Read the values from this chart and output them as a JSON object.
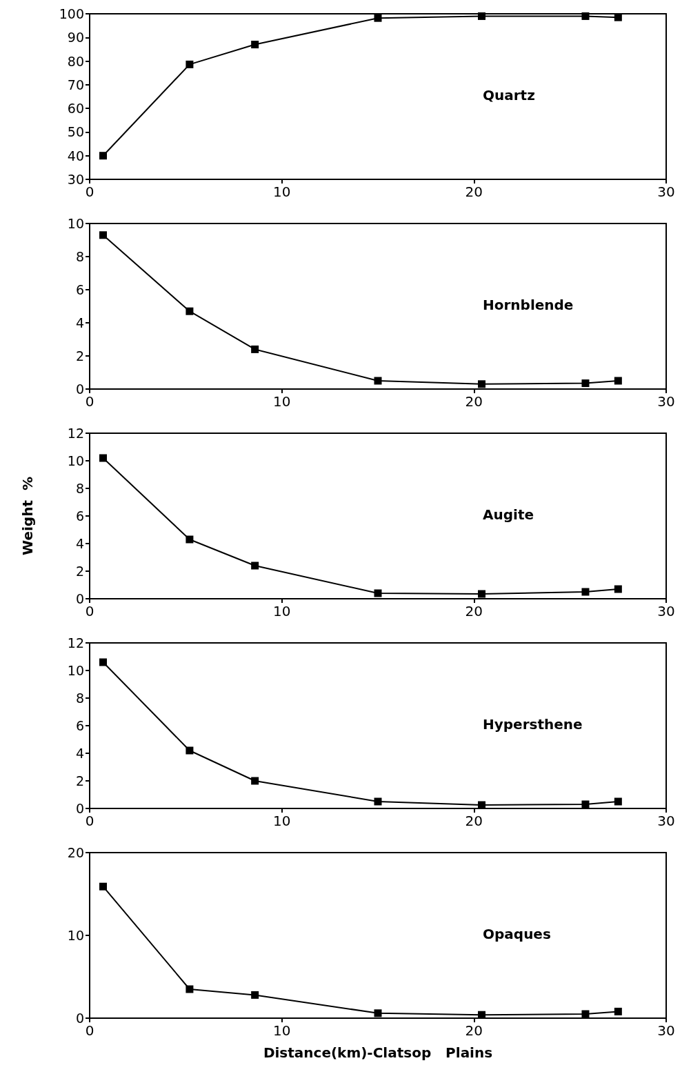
{
  "chart_data": [
    {
      "type": "line",
      "x": [
        0.7,
        5.2,
        8.6,
        15,
        20.4,
        25.8,
        27.5
      ],
      "values": [
        40,
        78.6,
        87,
        98.2,
        99,
        99,
        98.5
      ],
      "color": "#000000",
      "marker": "square",
      "xlim": [
        0,
        30
      ],
      "xticks": [
        0,
        10,
        20,
        30
      ],
      "ylim": [
        30,
        100
      ],
      "yticks": [
        30,
        40,
        50,
        60,
        70,
        80,
        90,
        100
      ],
      "grid": false,
      "annotations": [
        "Quartz"
      ]
    },
    {
      "type": "line",
      "x": [
        0.7,
        5.2,
        8.6,
        15,
        20.4,
        25.8,
        27.5
      ],
      "values": [
        9.3,
        4.7,
        2.4,
        0.5,
        0.3,
        0.35,
        0.5
      ],
      "color": "#000000",
      "marker": "square",
      "xlim": [
        0,
        30
      ],
      "xticks": [
        0,
        10,
        20,
        30
      ],
      "ylim": [
        0,
        10
      ],
      "yticks": [
        0,
        2,
        4,
        6,
        8,
        10
      ],
      "grid": false,
      "annotations": [
        "Hornblende"
      ]
    },
    {
      "type": "line",
      "x": [
        0.7,
        5.2,
        8.6,
        15,
        20.4,
        25.8,
        27.5
      ],
      "values": [
        10.2,
        4.3,
        2.4,
        0.4,
        0.35,
        0.5,
        0.7
      ],
      "color": "#000000",
      "marker": "square",
      "xlim": [
        0,
        30
      ],
      "xticks": [
        0,
        10,
        20,
        30
      ],
      "ylim": [
        0,
        12
      ],
      "yticks": [
        0,
        2,
        4,
        6,
        8,
        10,
        12
      ],
      "grid": false,
      "ylabel": "Weight  %",
      "annotations": [
        "Augite"
      ]
    },
    {
      "type": "line",
      "x": [
        0.7,
        5.2,
        8.6,
        15,
        20.4,
        25.8,
        27.5
      ],
      "values": [
        10.6,
        4.2,
        2.0,
        0.5,
        0.25,
        0.3,
        0.5
      ],
      "color": "#000000",
      "marker": "square",
      "xlim": [
        0,
        30
      ],
      "xticks": [
        0,
        10,
        20,
        30
      ],
      "ylim": [
        0,
        12
      ],
      "yticks": [
        0,
        2,
        4,
        6,
        8,
        10,
        12
      ],
      "grid": false,
      "annotations": [
        "Hypersthene"
      ]
    },
    {
      "type": "line",
      "x": [
        0.7,
        5.2,
        8.6,
        15,
        20.4,
        25.8,
        27.5
      ],
      "values": [
        15.9,
        3.5,
        2.8,
        0.6,
        0.4,
        0.5,
        0.8
      ],
      "color": "#000000",
      "marker": "square",
      "xlim": [
        0,
        30
      ],
      "xticks": [
        0,
        10,
        20,
        30
      ],
      "ylim": [
        0,
        20
      ],
      "yticks": [
        0,
        10,
        20
      ],
      "grid": false,
      "xlabel": "Distance(km)-Clatsop   Plains",
      "annotations": [
        "Opaques"
      ]
    }
  ]
}
